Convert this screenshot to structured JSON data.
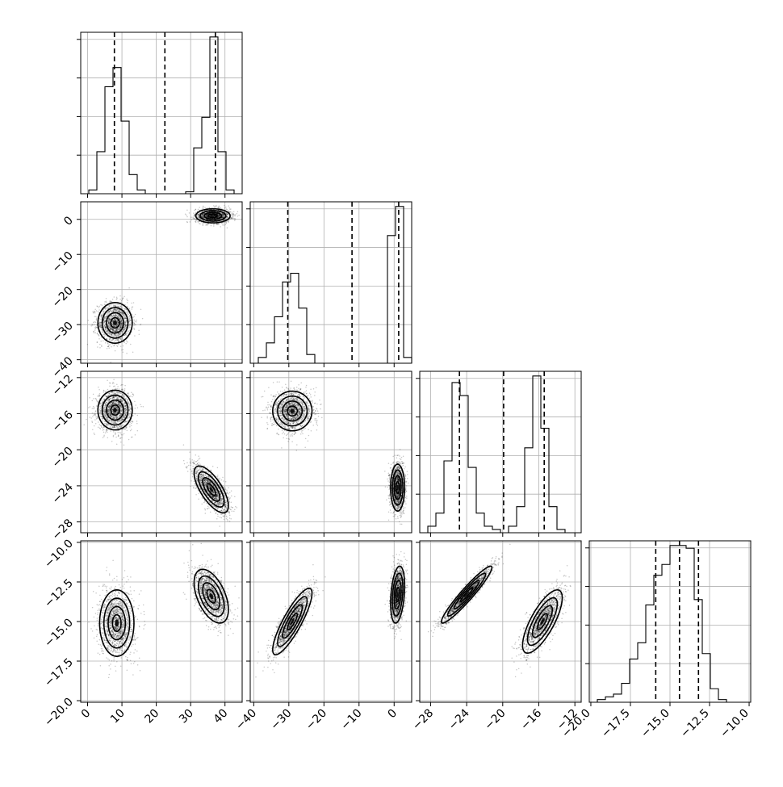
{
  "chart_data": {
    "type": "corner",
    "parameters": [
      {
        "xlim": [
          -2,
          45
        ],
        "xticks": [
          0,
          10,
          20,
          30,
          40
        ],
        "xtick_labels": [
          "0",
          "10",
          "20",
          "30",
          "40"
        ]
      },
      {
        "lim": [
          -41,
          5
        ],
        "ticks": [
          0,
          -10,
          -20,
          -30,
          -40
        ],
        "tick_labels": [
          "0",
          "−10",
          "−20",
          "−30",
          "−40"
        ]
      },
      {
        "lim": [
          -29.2,
          -11.3
        ],
        "ticks": [
          -28,
          -24,
          -20,
          -16,
          -12
        ],
        "tick_labels": [
          "−28",
          "−24",
          "−20",
          "−16",
          "−12"
        ]
      },
      {
        "lim": [
          -20.1,
          -9.9
        ],
        "ticks": [
          -20.0,
          -17.5,
          -15.0,
          -12.5,
          -10.0
        ],
        "tick_labels": [
          "−20.0",
          "−17.5",
          "−15.0",
          "−12.5",
          "−10.0"
        ]
      }
    ],
    "histograms": [
      {
        "param": 0,
        "edges": [
          -2,
          0.35,
          2.7,
          5.05,
          7.4,
          9.75,
          12.1,
          14.45,
          16.8,
          19.15,
          21.5,
          23.85,
          26.2,
          28.55,
          30.9,
          33.25,
          35.6,
          37.95,
          40.3,
          42.65,
          45
        ],
        "counts": [
          0,
          2,
          22,
          56,
          66,
          38,
          10,
          2,
          0,
          0,
          0,
          0,
          0,
          1,
          24,
          40,
          82,
          22,
          2,
          0
        ],
        "quantiles": [
          7.8,
          22.5,
          37.2
        ]
      },
      {
        "param": 1,
        "edges": [
          -41,
          -38.7,
          -36.4,
          -34.1,
          -31.8,
          -29.5,
          -27.2,
          -24.9,
          -22.6,
          -20.3,
          -18,
          -15.7,
          -13.4,
          -11.1,
          -8.8,
          -6.5,
          -4.2,
          -1.9,
          0.4,
          2.7,
          5
        ],
        "counts": [
          0,
          2,
          7,
          16,
          28,
          31,
          19,
          3,
          0,
          0,
          0,
          0,
          0,
          0,
          0,
          0,
          0,
          44,
          54,
          2
        ],
        "quantiles": [
          -30.3,
          -12.0,
          1.3
        ]
      },
      {
        "param": 2,
        "edges": [
          -29.2,
          -28.305,
          -27.41,
          -26.515,
          -25.62,
          -24.725,
          -23.83,
          -22.935,
          -22.04,
          -21.145,
          -20.25,
          -19.355,
          -18.46,
          -17.565,
          -16.67,
          -15.775,
          -14.88,
          -13.985,
          -13.09,
          -12.195,
          -11.3
        ],
        "counts": [
          0,
          2,
          6,
          22,
          46,
          42,
          20,
          6,
          2,
          1,
          0,
          2,
          8,
          26,
          48,
          32,
          8,
          1,
          0,
          0
        ],
        "quantiles": [
          -24.8,
          -19.9,
          -15.4
        ]
      },
      {
        "param": 3,
        "edges": [
          -20.1,
          -19.59,
          -19.08,
          -18.57,
          -18.06,
          -17.55,
          -17.04,
          -16.53,
          -16.02,
          -15.51,
          -15.0,
          -14.49,
          -13.98,
          -13.47,
          -12.96,
          -12.45,
          -11.94,
          -11.43,
          -10.92,
          -10.41,
          -9.9
        ],
        "counts": [
          0,
          1,
          2,
          3,
          7,
          16,
          22,
          36,
          47,
          51,
          58,
          58,
          57,
          38,
          18,
          5,
          1,
          0,
          0,
          0
        ],
        "quantiles": [
          -15.9,
          -14.4,
          -13.2
        ]
      }
    ],
    "pairs": [
      {
        "x": 0,
        "y": 1,
        "clusters": [
          {
            "mx": 8.0,
            "my": -29.5,
            "sx": 2.5,
            "sy": 2.9,
            "rho": 0.0,
            "n": 1500
          },
          {
            "mx": 36.5,
            "my": 1.0,
            "sx": 2.5,
            "sy": 1.0,
            "rho": 0.0,
            "n": 1500
          }
        ]
      },
      {
        "x": 0,
        "y": 2,
        "clusters": [
          {
            "mx": 8.0,
            "my": -15.6,
            "sx": 2.5,
            "sy": 1.1,
            "rho": 0.0,
            "n": 1500
          },
          {
            "mx": 36.0,
            "my": -24.4,
            "sx": 2.5,
            "sy": 1.3,
            "rho": -0.7,
            "n": 1500
          }
        ]
      },
      {
        "x": 0,
        "y": 3,
        "clusters": [
          {
            "mx": 8.5,
            "my": -15.1,
            "sx": 2.5,
            "sy": 1.05,
            "rho": 0.0,
            "n": 1500
          },
          {
            "mx": 36.0,
            "my": -13.4,
            "sx": 2.5,
            "sy": 0.85,
            "rho": -0.5,
            "n": 1500
          }
        ]
      },
      {
        "x": 1,
        "y": 2,
        "clusters": [
          {
            "mx": -29.0,
            "my": -15.7,
            "sx": 2.8,
            "sy": 1.1,
            "rho": 0.0,
            "n": 1500
          },
          {
            "mx": 1.0,
            "my": -24.2,
            "sx": 1.0,
            "sy": 1.3,
            "rho": 0.0,
            "n": 1500
          }
        ]
      },
      {
        "x": 1,
        "y": 3,
        "clusters": [
          {
            "mx": -29.0,
            "my": -15.0,
            "sx": 2.8,
            "sy": 1.05,
            "rho": 0.85,
            "n": 1500
          },
          {
            "mx": 1.0,
            "my": -13.3,
            "sx": 1.0,
            "sy": 0.9,
            "rho": 0.3,
            "n": 1500
          }
        ]
      },
      {
        "x": 2,
        "y": 3,
        "clusters": [
          {
            "mx": -24.0,
            "my": -13.3,
            "sx": 1.4,
            "sy": 0.9,
            "rho": 0.95,
            "n": 1500
          },
          {
            "mx": -15.6,
            "my": -15.0,
            "sx": 1.1,
            "sy": 1.0,
            "rho": 0.75,
            "n": 1500
          }
        ]
      }
    ],
    "grid": true,
    "contour_levels_sigma": [
      0.5,
      1.0,
      1.5,
      2.0
    ]
  }
}
